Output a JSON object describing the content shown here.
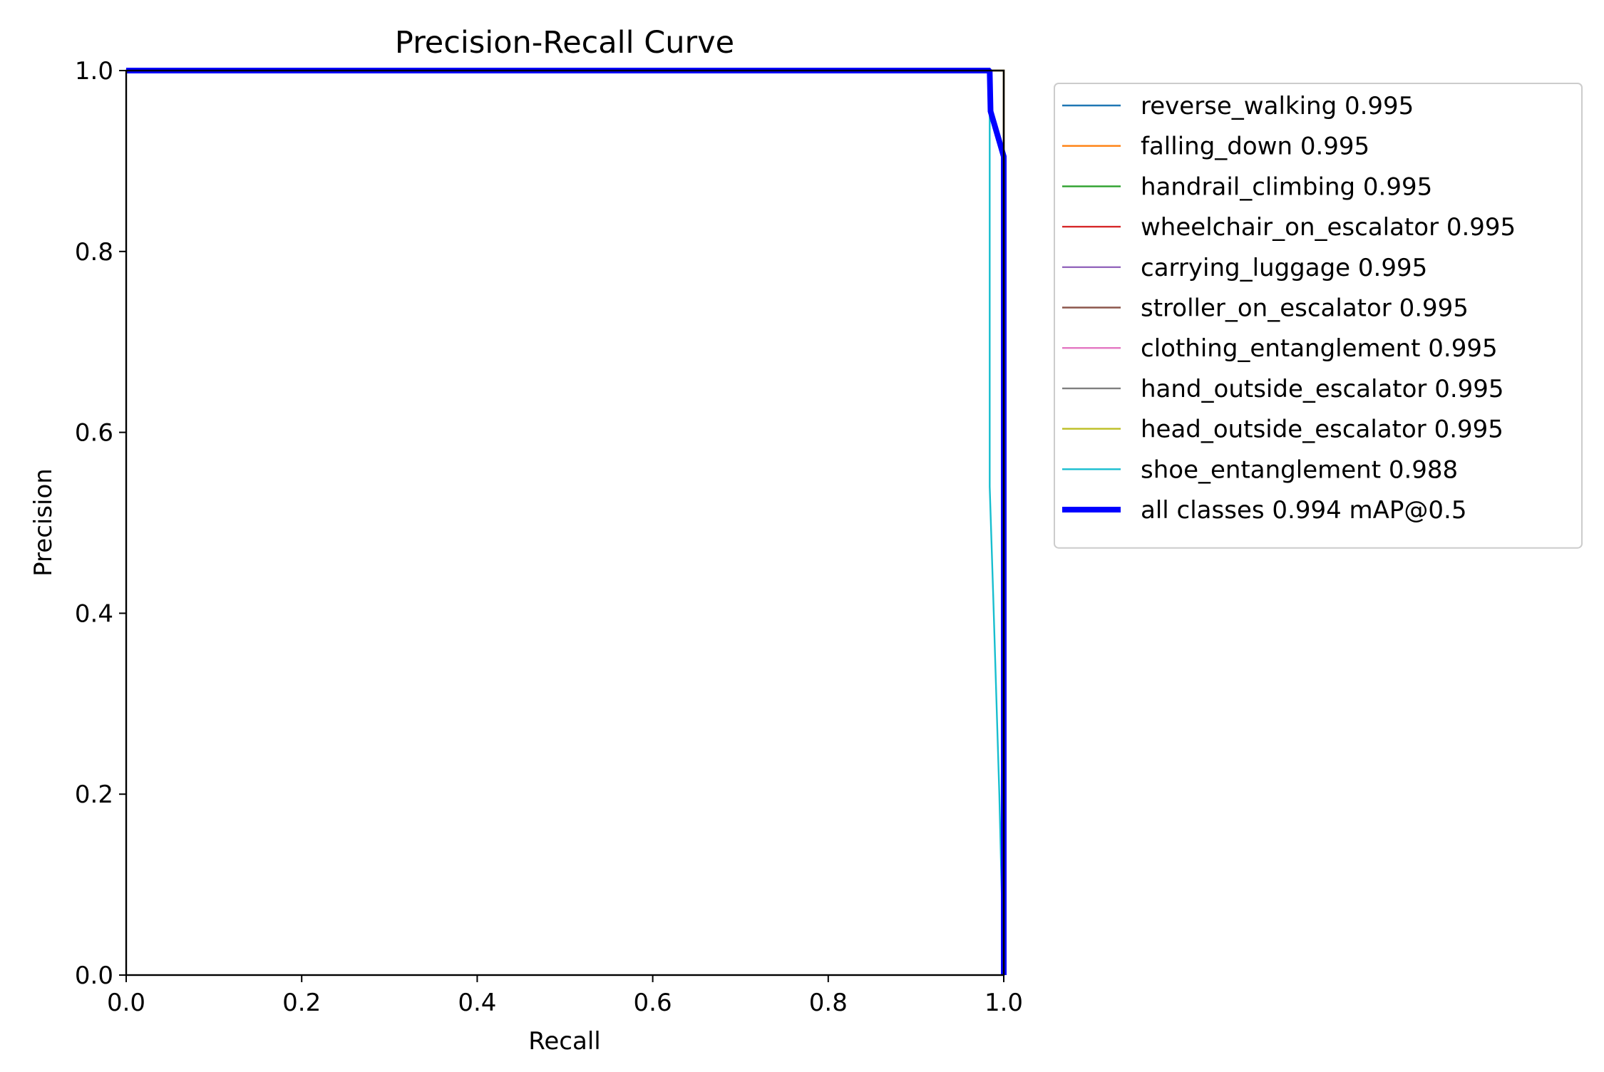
{
  "chart_data": {
    "type": "line",
    "title": "Precision-Recall Curve",
    "xlabel": "Recall",
    "ylabel": "Precision",
    "xlim": [
      0.0,
      1.0
    ],
    "ylim": [
      0.0,
      1.0
    ],
    "xticks": [
      "0.0",
      "0.2",
      "0.4",
      "0.6",
      "0.8",
      "1.0"
    ],
    "yticks": [
      "0.0",
      "0.2",
      "0.4",
      "0.6",
      "0.8",
      "1.0"
    ],
    "grid": false,
    "legend_position": "outside-right-top",
    "series": [
      {
        "name": "reverse_walking 0.995",
        "color": "#1f77b4",
        "thick": false,
        "x": [
          0.0,
          1.0,
          1.0
        ],
        "y": [
          1.0,
          1.0,
          0.0
        ]
      },
      {
        "name": "falling_down 0.995",
        "color": "#ff7f0e",
        "thick": false,
        "x": [
          0.0,
          1.0,
          1.0
        ],
        "y": [
          1.0,
          1.0,
          0.0
        ]
      },
      {
        "name": "handrail_climbing 0.995",
        "color": "#2ca02c",
        "thick": false,
        "x": [
          0.0,
          1.0,
          1.0
        ],
        "y": [
          1.0,
          1.0,
          0.0
        ]
      },
      {
        "name": "wheelchair_on_escalator 0.995",
        "color": "#d62728",
        "thick": false,
        "x": [
          0.0,
          1.0,
          1.0
        ],
        "y": [
          1.0,
          1.0,
          0.0
        ]
      },
      {
        "name": "carrying_luggage 0.995",
        "color": "#9467bd",
        "thick": false,
        "x": [
          0.0,
          1.0,
          1.0
        ],
        "y": [
          1.0,
          1.0,
          0.0
        ]
      },
      {
        "name": "stroller_on_escalator 0.995",
        "color": "#8c564b",
        "thick": false,
        "x": [
          0.0,
          1.0,
          1.0
        ],
        "y": [
          1.0,
          1.0,
          0.0
        ]
      },
      {
        "name": "clothing_entanglement 0.995",
        "color": "#e377c2",
        "thick": false,
        "x": [
          0.0,
          1.0,
          1.0
        ],
        "y": [
          1.0,
          1.0,
          0.0
        ]
      },
      {
        "name": "hand_outside_escalator 0.995",
        "color": "#7f7f7f",
        "thick": false,
        "x": [
          0.0,
          1.0,
          1.0
        ],
        "y": [
          1.0,
          1.0,
          0.0
        ]
      },
      {
        "name": "head_outside_escalator 0.995",
        "color": "#bcbd22",
        "thick": false,
        "x": [
          0.0,
          0.984,
          1.0,
          1.0
        ],
        "y": [
          1.0,
          1.0,
          1.0,
          0.0
        ]
      },
      {
        "name": "shoe_entanglement 0.988",
        "color": "#17becf",
        "thick": false,
        "x": [
          0.0,
          0.984,
          0.984,
          0.984,
          0.988,
          0.995,
          0.998,
          1.0
        ],
        "y": [
          1.0,
          1.0,
          0.91,
          0.54,
          0.42,
          0.2,
          0.08,
          0.0
        ]
      },
      {
        "name": "all classes 0.994 mAP@0.5",
        "color": "#0000ff",
        "thick": true,
        "x": [
          0.0,
          0.983,
          0.984,
          0.985,
          1.0,
          1.0
        ],
        "y": [
          1.0,
          1.0,
          0.999,
          0.955,
          0.905,
          0.0
        ]
      }
    ]
  }
}
